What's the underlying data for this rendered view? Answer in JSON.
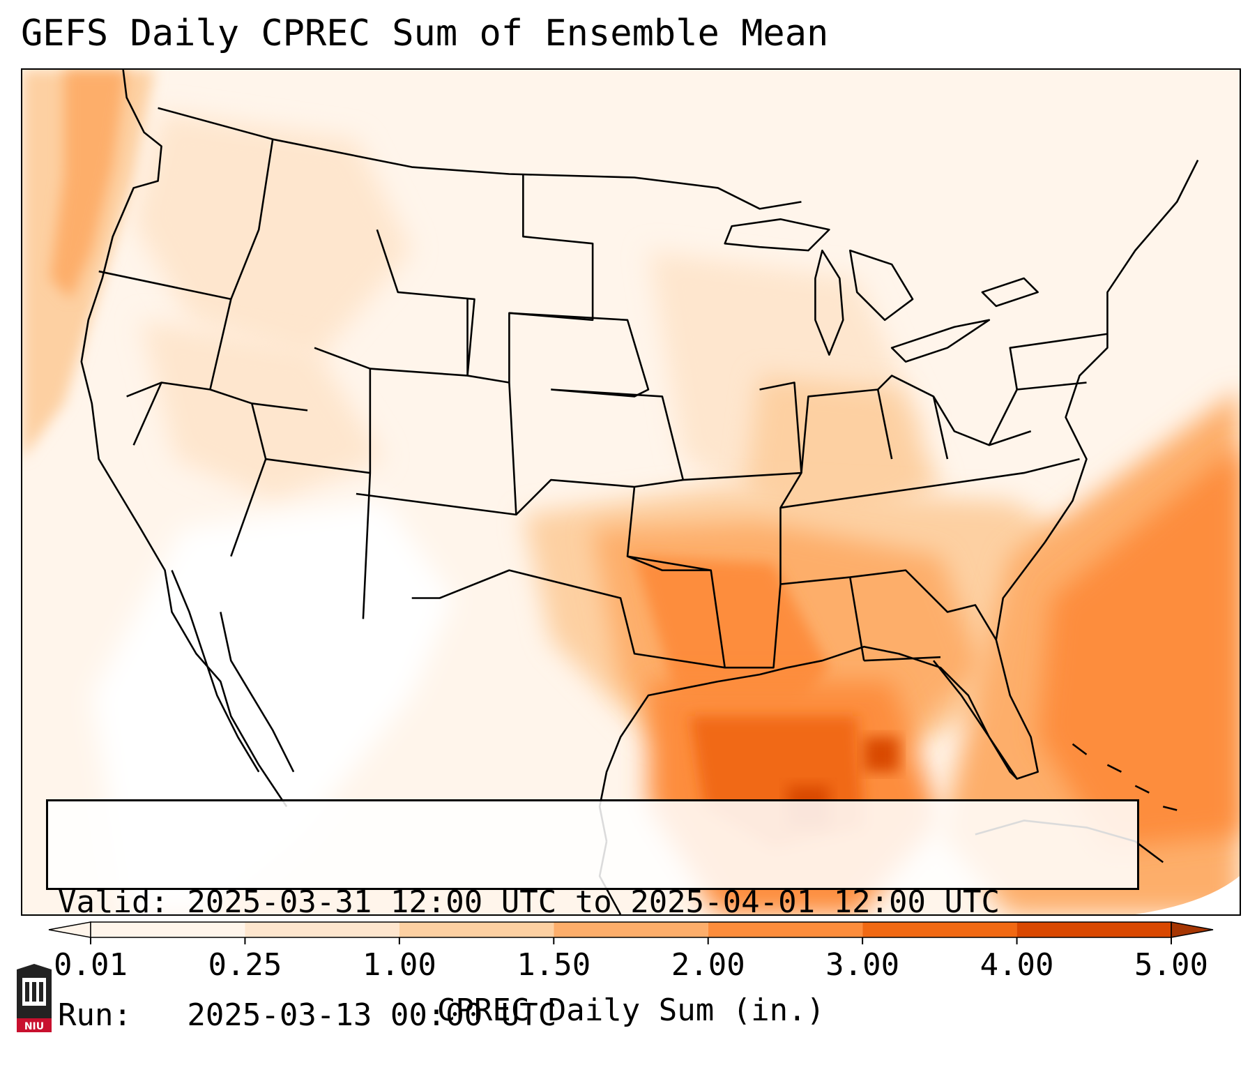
{
  "title": "GEFS Daily CPREC Sum of Ensemble Mean",
  "info": {
    "valid_line": "Valid: 2025-03-31 12:00 UTC to 2025-04-01 12:00 UTC",
    "run_line": "Run:   2025-03-13 00:00 UTC"
  },
  "colorbar": {
    "label": "CPREC Daily Sum (in.)",
    "ticks": [
      "0.01",
      "0.25",
      "1.00",
      "1.50",
      "2.00",
      "3.00",
      "4.00",
      "5.00"
    ],
    "colors": [
      "#fff5eb",
      "#fee6ce",
      "#fdd0a2",
      "#fdae6b",
      "#fd8d3c",
      "#f16913",
      "#d94801",
      "#a63603"
    ],
    "extend": "both"
  },
  "map": {
    "region": "Contiguous United States",
    "field": "CPREC",
    "background_color": "#fff5eb",
    "coast_color": "#000000"
  },
  "logo": {
    "text": "NIU",
    "accent": "#c8102e"
  }
}
